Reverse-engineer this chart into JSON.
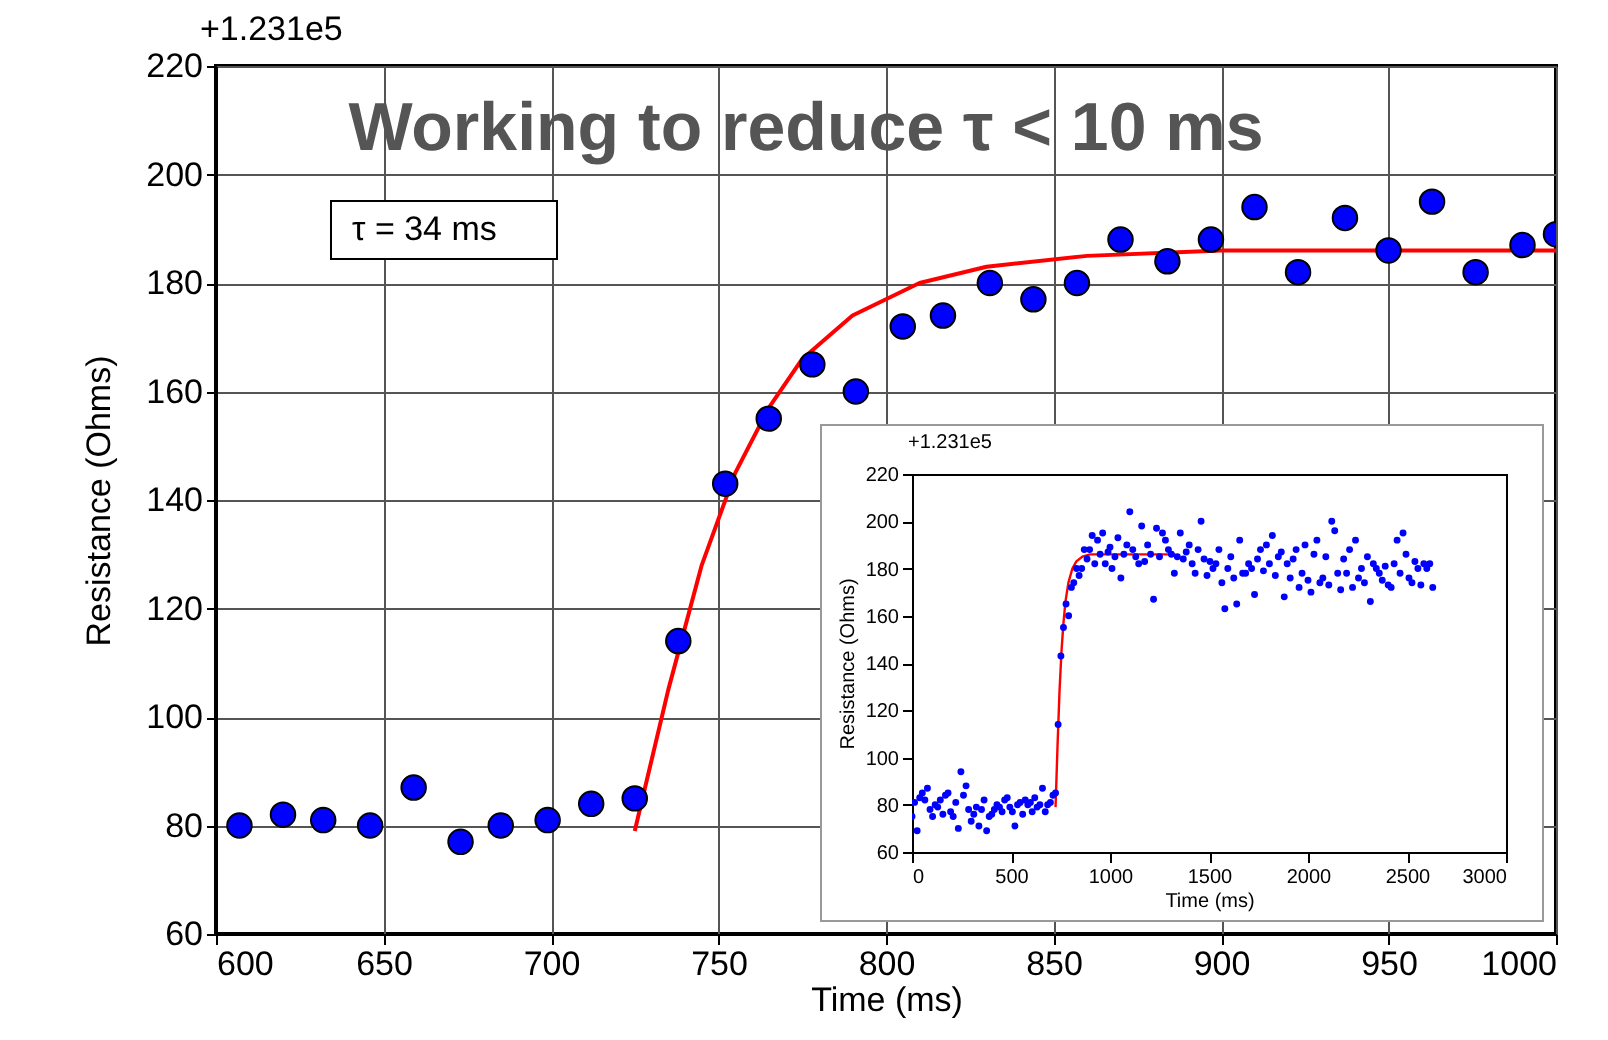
{
  "chart_data": [
    {
      "type": "scatter",
      "title": "Working to reduce τ < 10 ms",
      "xlabel": "Time (ms)",
      "ylabel": "Resistance (Ohms)",
      "annotations": [
        "+1.231e5",
        "τ = 34 ms"
      ],
      "xlim": [
        600,
        1000
      ],
      "xticks": [
        600,
        650,
        700,
        750,
        800,
        850,
        900,
        950,
        1000
      ],
      "ylim": [
        60,
        220
      ],
      "yticks": [
        60,
        80,
        100,
        120,
        140,
        160,
        180,
        200,
        220
      ],
      "grid": true,
      "series": [
        {
          "type": "scatter",
          "marker": "circle",
          "color": "#0000ff",
          "x": [
            607,
            620,
            632,
            646,
            659,
            673,
            685,
            699,
            712,
            725,
            738,
            752,
            765,
            778,
            791,
            805,
            817,
            831,
            844,
            857,
            870,
            884,
            897,
            910,
            923,
            937,
            950,
            963,
            976,
            990,
            1000
          ],
          "values": [
            80,
            82,
            81,
            80,
            87,
            77,
            80,
            81,
            84,
            85,
            114,
            143,
            155,
            165,
            160,
            172,
            174,
            180,
            177,
            180,
            188,
            184,
            188,
            194,
            182,
            192,
            186,
            195,
            182,
            187,
            189
          ]
        },
        {
          "type": "line",
          "color": "#ff0000",
          "x": [
            725,
            735,
            745,
            755,
            765,
            775,
            790,
            810,
            830,
            860,
            900,
            1000
          ],
          "values": [
            79,
            105,
            128,
            145,
            157,
            166,
            174,
            180,
            183,
            185,
            186,
            186
          ]
        }
      ]
    },
    {
      "type": "scatter",
      "xlabel": "Time (ms)",
      "ylabel": "Resistance (Ohms)",
      "annotations": [
        "+1.231e5"
      ],
      "xlim": [
        0,
        3000
      ],
      "xticks": [
        0,
        500,
        1000,
        1500,
        2000,
        2500,
        3000
      ],
      "ylim": [
        60,
        220
      ],
      "yticks": [
        60,
        80,
        100,
        120,
        140,
        160,
        180,
        200,
        220
      ],
      "grid": false,
      "series": [
        {
          "type": "scatter",
          "marker": "circle",
          "color": "#0000ff",
          "x": [
            0,
            13,
            26,
            39,
            52,
            65,
            78,
            91,
            104,
            117,
            130,
            143,
            156,
            169,
            182,
            195,
            208,
            221,
            234,
            247,
            260,
            273,
            286,
            299,
            312,
            325,
            338,
            351,
            364,
            377,
            390,
            403,
            416,
            429,
            442,
            455,
            468,
            481,
            494,
            507,
            520,
            533,
            546,
            559,
            572,
            585,
            598,
            607,
            620,
            632,
            646,
            659,
            673,
            685,
            699,
            712,
            725,
            738,
            752,
            765,
            778,
            791,
            805,
            817,
            831,
            844,
            857,
            870,
            884,
            897,
            910,
            923,
            937,
            950,
            963,
            976,
            990,
            1000,
            1010,
            1025,
            1040,
            1055,
            1070,
            1085,
            1100,
            1115,
            1130,
            1145,
            1160,
            1175,
            1190,
            1205,
            1220,
            1235,
            1250,
            1265,
            1280,
            1295,
            1310,
            1325,
            1340,
            1355,
            1370,
            1385,
            1400,
            1415,
            1430,
            1445,
            1460,
            1475,
            1490,
            1505,
            1520,
            1535,
            1550,
            1565,
            1580,
            1595,
            1610,
            1625,
            1640,
            1655,
            1670,
            1685,
            1700,
            1715,
            1730,
            1745,
            1760,
            1775,
            1790,
            1805,
            1820,
            1835,
            1850,
            1865,
            1880,
            1895,
            1910,
            1925,
            1940,
            1955,
            1970,
            1985,
            2000,
            2015,
            2030,
            2045,
            2060,
            2075,
            2090,
            2105,
            2120,
            2135,
            2150,
            2165,
            2180,
            2195,
            2210,
            2225,
            2240,
            2255,
            2270,
            2285,
            2300,
            2315,
            2330,
            2345,
            2360,
            2375,
            2390,
            2405,
            2420,
            2435,
            2450,
            2465,
            2480,
            2495,
            2510,
            2525,
            2540,
            2555,
            2570,
            2585,
            2600,
            2615,
            2630
          ],
          "values": [
            75,
            81,
            69,
            83,
            85,
            82,
            87,
            78,
            75,
            80,
            79,
            82,
            76,
            84,
            85,
            77,
            75,
            81,
            70,
            94,
            84,
            88,
            78,
            73,
            76,
            79,
            71,
            78,
            82,
            69,
            75,
            76,
            78,
            80,
            79,
            77,
            82,
            83,
            79,
            77,
            71,
            80,
            81,
            76,
            82,
            80,
            81,
            77,
            83,
            79,
            80,
            87,
            77,
            80,
            81,
            84,
            85,
            114,
            143,
            155,
            165,
            160,
            172,
            174,
            180,
            177,
            180,
            188,
            184,
            188,
            194,
            182,
            192,
            186,
            195,
            182,
            187,
            189,
            180,
            185,
            193,
            176,
            186,
            190,
            204,
            188,
            185,
            182,
            198,
            183,
            190,
            186,
            167,
            197,
            185,
            195,
            192,
            188,
            186,
            178,
            185,
            195,
            184,
            187,
            190,
            182,
            178,
            188,
            200,
            184,
            177,
            183,
            180,
            182,
            188,
            174,
            163,
            180,
            185,
            176,
            165,
            192,
            178,
            178,
            182,
            180,
            169,
            184,
            188,
            179,
            190,
            182,
            194,
            177,
            185,
            187,
            168,
            182,
            176,
            184,
            188,
            172,
            178,
            190,
            175,
            170,
            186,
            192,
            174,
            176,
            185,
            173,
            200,
            196,
            178,
            171,
            184,
            178,
            188,
            172,
            192,
            176,
            180,
            174,
            185,
            166,
            182,
            180,
            178,
            175,
            181,
            173,
            172,
            182,
            192,
            178,
            195,
            186,
            176,
            174,
            183,
            180,
            173,
            182,
            180,
            182,
            172
          ]
        },
        {
          "type": "line",
          "color": "#ff0000",
          "x": [
            725,
            735,
            745,
            755,
            765,
            775,
            790,
            810,
            830,
            860,
            900,
            1000,
            1330
          ],
          "values": [
            79,
            105,
            128,
            145,
            157,
            166,
            174,
            180,
            183,
            185,
            186,
            186,
            186
          ]
        }
      ]
    }
  ]
}
